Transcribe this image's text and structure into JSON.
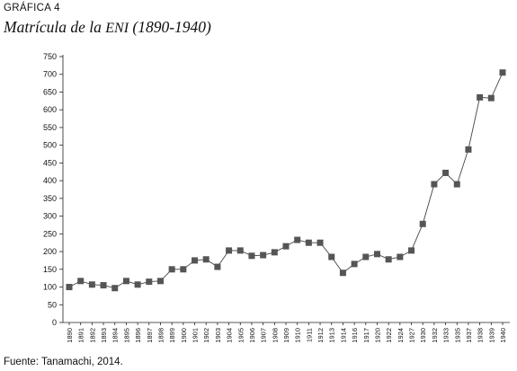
{
  "figure_label": "GRÁFICA 4",
  "title_pre": "Matrícula de la ",
  "title_abbrev": "ENI",
  "title_post": " (1890-1940)",
  "source": "Fuente: Tanamachi, 2014.",
  "chart_data": {
    "type": "line",
    "title": "Matrícula de la ENI (1890-1940)",
    "xlabel": "",
    "ylabel": "",
    "ylim": [
      0,
      750
    ],
    "yticks": [
      0,
      50,
      100,
      150,
      200,
      250,
      300,
      350,
      400,
      450,
      500,
      550,
      600,
      650,
      700,
      750
    ],
    "grid": false,
    "legend": "none",
    "marker": "square",
    "colors": {
      "line": "#444444",
      "marker": "#555555",
      "axis": "#222222"
    },
    "categories": [
      "1890",
      "1891",
      "1892",
      "1893",
      "1894",
      "1895",
      "1896",
      "1897",
      "1898",
      "1899",
      "1900",
      "1901",
      "1902",
      "1903",
      "1904",
      "1905",
      "1906",
      "1907",
      "1908",
      "1909",
      "1910",
      "1911",
      "1912",
      "1913",
      "1914",
      "1916",
      "1917",
      "1920",
      "1922",
      "1924",
      "1927",
      "1930",
      "1932",
      "1933",
      "1935",
      "1937",
      "1938",
      "1939",
      "1940"
    ],
    "values": [
      100,
      117,
      107,
      105,
      97,
      117,
      107,
      115,
      117,
      150,
      150,
      175,
      178,
      157,
      203,
      203,
      188,
      190,
      198,
      215,
      233,
      225,
      225,
      185,
      140,
      165,
      185,
      193,
      178,
      185,
      203,
      278,
      390,
      422,
      390,
      488,
      635,
      633,
      705
    ]
  }
}
